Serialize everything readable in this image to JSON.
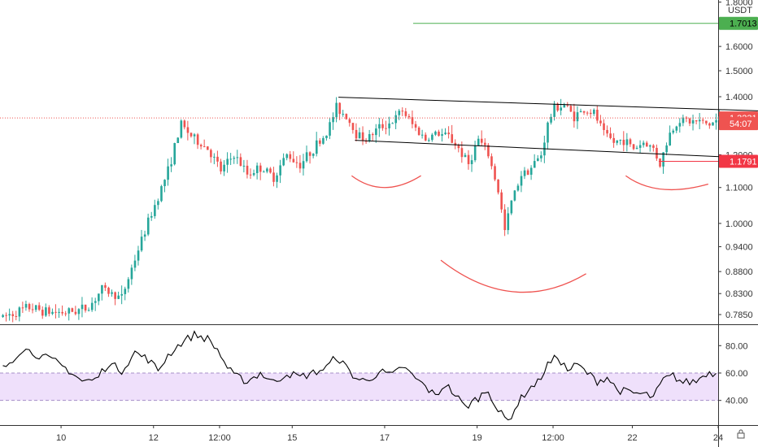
{
  "chart_data": [
    {
      "type": "candlestick",
      "quote_currency": "USDT",
      "yscale": "log",
      "ylim": [
        0.765,
        1.81
      ],
      "yticks": [
        "1.8000",
        "1.6000",
        "1.5000",
        "1.4000",
        "1.3000",
        "1.2000",
        "1.1000",
        "1.0000",
        "0.9400",
        "0.8800",
        "0.8300",
        "0.7850"
      ],
      "ytick_values": [
        1.8,
        1.6,
        1.5,
        1.4,
        1.3,
        1.2,
        1.1,
        1.0,
        0.94,
        0.88,
        0.83,
        0.785
      ],
      "price_tags": [
        {
          "label": "1.7013",
          "value": 1.7013,
          "color": "#4caf50",
          "text_color": "#000000",
          "line": "solid"
        },
        {
          "label": "1.3231",
          "value": 1.3231,
          "color": "#ef5350",
          "text_color": "#ffffff",
          "line": "dotted"
        },
        {
          "label": "54:07",
          "value": 1.3035,
          "color": "#ef5350",
          "text_color": "#ffffff",
          "line": "none"
        },
        {
          "label": "1.1791",
          "value": 1.1791,
          "color": "#f23645",
          "text_color": "#ffffff",
          "line": "solid"
        }
      ],
      "colors": {
        "up": "#26a69a",
        "down": "#ef5350",
        "pattern": "#ef5350",
        "channel": "#000000"
      },
      "ohlc_anchors": [
        [
          0,
          0.78
        ],
        [
          8,
          0.8
        ],
        [
          14,
          0.79
        ],
        [
          20,
          0.79
        ],
        [
          26,
          0.8
        ],
        [
          30,
          0.84
        ],
        [
          36,
          0.82
        ],
        [
          40,
          0.91
        ],
        [
          46,
          1.05
        ],
        [
          50,
          1.15
        ],
        [
          54,
          1.3
        ],
        [
          58,
          1.25
        ],
        [
          62,
          1.22
        ],
        [
          66,
          1.15
        ],
        [
          70,
          1.2
        ],
        [
          74,
          1.14
        ],
        [
          78,
          1.16
        ],
        [
          82,
          1.13
        ],
        [
          86,
          1.2
        ],
        [
          90,
          1.17
        ],
        [
          94,
          1.22
        ],
        [
          98,
          1.27
        ],
        [
          101,
          1.36
        ],
        [
          104,
          1.33
        ],
        [
          107,
          1.27
        ],
        [
          110,
          1.25
        ],
        [
          114,
          1.29
        ],
        [
          118,
          1.31
        ],
        [
          121,
          1.35
        ],
        [
          124,
          1.3
        ],
        [
          128,
          1.25
        ],
        [
          131,
          1.27
        ],
        [
          135,
          1.26
        ],
        [
          138,
          1.22
        ],
        [
          141,
          1.17
        ],
        [
          144,
          1.25
        ],
        [
          147,
          1.2
        ],
        [
          150,
          1.09
        ],
        [
          152,
          0.98
        ],
        [
          154,
          1.06
        ],
        [
          157,
          1.14
        ],
        [
          160,
          1.16
        ],
        [
          163,
          1.2
        ],
        [
          165,
          1.3
        ],
        [
          167,
          1.36
        ],
        [
          170,
          1.37
        ],
        [
          173,
          1.33
        ],
        [
          176,
          1.35
        ],
        [
          179,
          1.34
        ],
        [
          182,
          1.27
        ],
        [
          185,
          1.24
        ],
        [
          188,
          1.25
        ],
        [
          191,
          1.22
        ],
        [
          194,
          1.24
        ],
        [
          197,
          1.22
        ],
        [
          199,
          1.17
        ],
        [
          202,
          1.27
        ],
        [
          205,
          1.32
        ],
        [
          208,
          1.31
        ],
        [
          211,
          1.31
        ],
        [
          214,
          1.3
        ],
        [
          217,
          1.32
        ]
      ],
      "channel_lines": [
        {
          "start": {
            "index": 102,
            "value": 1.398
          },
          "end": {
            "index": 265,
            "value": 1.335
          }
        },
        {
          "start": {
            "index": 107,
            "value": 1.247
          },
          "end": {
            "index": 265,
            "value": 1.172
          }
        }
      ],
      "support_line": {
        "start_index": 199,
        "value": 1.1791
      },
      "pattern_arcs": [
        {
          "name": "left-shoulder",
          "points": [
            [
              106,
              1.135
            ],
            [
              116,
              1.1
            ],
            [
              127,
              1.135
            ]
          ]
        },
        {
          "name": "head",
          "points": [
            [
              133,
              0.907
            ],
            [
              155,
              0.834
            ],
            [
              177,
              0.875
            ]
          ]
        },
        {
          "name": "right-shoulder",
          "points": [
            [
              189,
              1.135
            ],
            [
              200,
              1.095
            ],
            [
              214,
              1.11
            ]
          ]
        }
      ]
    },
    {
      "type": "line",
      "indicator": "oscillator",
      "ylim": [
        22,
        95
      ],
      "yticks": [
        "80.00",
        "60.00",
        "40.00"
      ],
      "ytick_values": [
        80,
        60,
        40
      ],
      "band": {
        "low": 40,
        "high": 60,
        "fill": "#efe0fb",
        "border": "#a58fc7"
      },
      "line_color": "#000000",
      "anchors": [
        [
          0,
          63
        ],
        [
          6,
          78
        ],
        [
          12,
          72
        ],
        [
          16,
          68
        ],
        [
          20,
          62
        ],
        [
          24,
          54
        ],
        [
          28,
          55
        ],
        [
          32,
          67
        ],
        [
          36,
          62
        ],
        [
          40,
          75
        ],
        [
          44,
          70
        ],
        [
          47,
          62
        ],
        [
          50,
          73
        ],
        [
          54,
          82
        ],
        [
          58,
          88
        ],
        [
          62,
          85
        ],
        [
          65,
          77
        ],
        [
          68,
          64
        ],
        [
          70,
          58
        ],
        [
          74,
          54
        ],
        [
          78,
          60
        ],
        [
          82,
          53
        ],
        [
          86,
          60
        ],
        [
          90,
          57
        ],
        [
          94,
          60
        ],
        [
          98,
          64
        ],
        [
          101,
          72
        ],
        [
          104,
          64
        ],
        [
          107,
          56
        ],
        [
          110,
          54
        ],
        [
          114,
          61
        ],
        [
          118,
          58
        ],
        [
          121,
          65
        ],
        [
          124,
          58
        ],
        [
          128,
          50
        ],
        [
          131,
          43
        ],
        [
          134,
          52
        ],
        [
          137,
          44
        ],
        [
          140,
          35
        ],
        [
          144,
          42
        ],
        [
          147,
          48
        ],
        [
          150,
          32
        ],
        [
          153,
          25
        ],
        [
          156,
          38
        ],
        [
          159,
          48
        ],
        [
          162,
          53
        ],
        [
          165,
          66
        ],
        [
          168,
          72
        ],
        [
          171,
          62
        ],
        [
          174,
          66
        ],
        [
          177,
          60
        ],
        [
          180,
          54
        ],
        [
          183,
          57
        ],
        [
          186,
          48
        ],
        [
          189,
          46
        ],
        [
          192,
          45
        ],
        [
          195,
          44
        ],
        [
          197,
          42
        ],
        [
          200,
          55
        ],
        [
          203,
          58
        ],
        [
          206,
          53
        ],
        [
          210,
          54
        ],
        [
          213,
          60
        ],
        [
          216,
          60
        ]
      ]
    }
  ],
  "x_axis": {
    "labels": [
      "10",
      "12",
      "12:00",
      "15",
      "17",
      "19",
      "12:00",
      "22",
      "24"
    ],
    "label_indices": [
      18,
      46,
      66,
      88,
      116,
      144,
      167,
      191,
      217
    ],
    "n_slots": 220
  },
  "scale_icon": "lock-icon"
}
